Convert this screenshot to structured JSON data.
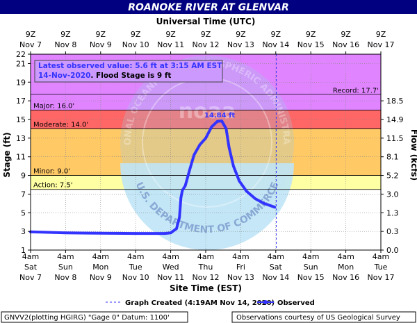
{
  "chart_data": {
    "type": "line",
    "title": "ROANOKE RIVER AT GLENVAR",
    "top_axis_title": "Universal Time (UTC)",
    "xlabel": "Site Time (EST)",
    "ylabel": "Stage (ft)",
    "ylabel_right": "Flow (kcfs)",
    "ylim": [
      1,
      22
    ],
    "y_ticks": [
      1,
      3,
      5,
      7,
      9,
      11,
      13,
      15,
      17,
      19,
      21,
      22
    ],
    "right_ticks": [
      {
        "stage": 1,
        "label": "0.0"
      },
      {
        "stage": 3,
        "label": "0.3"
      },
      {
        "stage": 5,
        "label": "1.3"
      },
      {
        "stage": 7,
        "label": "3.0"
      },
      {
        "stage": 9,
        "label": "5.2"
      },
      {
        "stage": 11,
        "label": "8.1"
      },
      {
        "stage": 13,
        "label": "11.5"
      },
      {
        "stage": 15,
        "label": "14.9"
      },
      {
        "stage": 17,
        "label": "18.5"
      }
    ],
    "xlim": [
      "2020-11-07T04:00",
      "2020-11-17T04:00"
    ],
    "x_ticks": [
      {
        "t": "2020-11-07T04:00",
        "bottom": [
          "4am",
          "Sat",
          "Nov 7"
        ],
        "top": [
          "9Z",
          "Nov 7"
        ]
      },
      {
        "t": "2020-11-08T04:00",
        "bottom": [
          "4am",
          "Sun",
          "Nov 8"
        ],
        "top": [
          "9Z",
          "Nov 8"
        ]
      },
      {
        "t": "2020-11-09T04:00",
        "bottom": [
          "4am",
          "Mon",
          "Nov 9"
        ],
        "top": [
          "9Z",
          "Nov 9"
        ]
      },
      {
        "t": "2020-11-10T04:00",
        "bottom": [
          "4am",
          "Tue",
          "Nov 10"
        ],
        "top": [
          "9Z",
          "Nov 10"
        ]
      },
      {
        "t": "2020-11-11T04:00",
        "bottom": [
          "4am",
          "Wed",
          "Nov 11"
        ],
        "top": [
          "9Z",
          "Nov 11"
        ]
      },
      {
        "t": "2020-11-12T04:00",
        "bottom": [
          "4am",
          "Thu",
          "Nov 12"
        ],
        "top": [
          "9Z",
          "Nov 12"
        ]
      },
      {
        "t": "2020-11-13T04:00",
        "bottom": [
          "4am",
          "Fri",
          "Nov 13"
        ],
        "top": [
          "9Z",
          "Nov 13"
        ]
      },
      {
        "t": "2020-11-14T04:00",
        "bottom": [
          "4am",
          "Sat",
          "Nov 14"
        ],
        "top": [
          "9Z",
          "Nov 14"
        ]
      },
      {
        "t": "2020-11-15T04:00",
        "bottom": [
          "4am",
          "Sun",
          "Nov 15"
        ],
        "top": [
          "9Z",
          "Nov 15"
        ]
      },
      {
        "t": "2020-11-16T04:00",
        "bottom": [
          "4am",
          "Mon",
          "Nov 16"
        ],
        "top": [
          "9Z",
          "Nov 16"
        ]
      },
      {
        "t": "2020-11-17T04:00",
        "bottom": [
          "4am",
          "Tue",
          "Nov 17"
        ],
        "top": [
          "9Z",
          "Nov 17"
        ]
      }
    ],
    "flood_categories": [
      {
        "name": "action",
        "label": "Action: 7.5'",
        "from": 7.5,
        "to": 9,
        "color": "#ffff66"
      },
      {
        "name": "minor",
        "label": "Minor: 9.0'",
        "from": 9,
        "to": 14,
        "color": "#ffa500"
      },
      {
        "name": "moderate",
        "label": "Moderate: 14.0'",
        "from": 14,
        "to": 16,
        "color": "#ff0000"
      },
      {
        "name": "major",
        "label": "Major: 16.0'",
        "from": 16,
        "to": 22,
        "color": "#cc33ff"
      }
    ],
    "record": {
      "label": "Record: 17.7'",
      "value": 17.7
    },
    "graph_created_time": "2020-11-14T04:19",
    "latest_obs": {
      "line1": "Latest observed value: 5.6 ft at 3:15 AM EST",
      "date": "14-Nov-2020",
      "flood_text": ". Flood Stage is 9 ft"
    },
    "peak_label": "14.84 ft",
    "peak": {
      "t": "2020-11-12T15:00",
      "y": 14.84
    },
    "series": [
      {
        "name": "Observed",
        "color": "#3333ff",
        "points": [
          [
            "2020-11-07T04:00",
            2.95
          ],
          [
            "2020-11-08T04:00",
            2.85
          ],
          [
            "2020-11-09T04:00",
            2.8
          ],
          [
            "2020-11-10T04:00",
            2.78
          ],
          [
            "2020-11-11T00:00",
            2.78
          ],
          [
            "2020-11-11T04:00",
            2.85
          ],
          [
            "2020-11-11T08:00",
            3.3
          ],
          [
            "2020-11-11T10:00",
            4.5
          ],
          [
            "2020-11-11T11:00",
            6.6
          ],
          [
            "2020-11-11T12:00",
            7.4
          ],
          [
            "2020-11-11T14:00",
            7.9
          ],
          [
            "2020-11-11T17:00",
            9.6
          ],
          [
            "2020-11-11T20:00",
            11.2
          ],
          [
            "2020-11-12T00:00",
            12.3
          ],
          [
            "2020-11-12T04:00",
            13.0
          ],
          [
            "2020-11-12T08:00",
            14.2
          ],
          [
            "2020-11-12T12:00",
            14.8
          ],
          [
            "2020-11-12T15:00",
            14.84
          ],
          [
            "2020-11-12T18:00",
            14.0
          ],
          [
            "2020-11-12T20:00",
            12.0
          ],
          [
            "2020-11-12T23:00",
            10.0
          ],
          [
            "2020-11-13T03:00",
            8.4
          ],
          [
            "2020-11-13T08:00",
            7.3
          ],
          [
            "2020-11-13T14:00",
            6.5
          ],
          [
            "2020-11-13T20:00",
            6.0
          ],
          [
            "2020-11-14T03:15",
            5.6
          ]
        ]
      }
    ],
    "legend": {
      "graph_created": "Graph Created (4:19AM Nov 14, 2020)",
      "observed": "Observed"
    },
    "footer_left": "GNVV2(plotting HGIRG) \"Gage 0\" Datum: 1100'",
    "footer_right": "Observations courtesy of US Geological Survey",
    "watermark_text": "NATIONAL OCEANIC AND ATMOSPHERIC ADMINISTRATION",
    "watermark_bottom": "U.S. DEPARTMENT OF COMMERCE",
    "watermark_center": "noaa",
    "grid": true
  }
}
